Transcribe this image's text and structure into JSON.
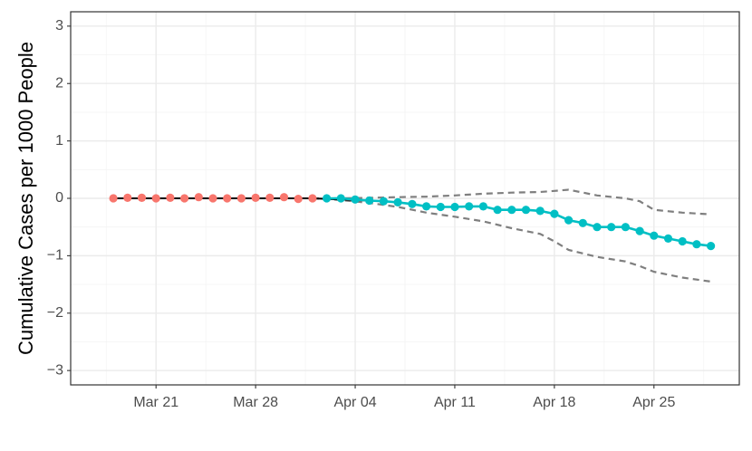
{
  "chart_data": {
    "type": "line",
    "title": "",
    "xlabel": "",
    "ylabel": "Cumulative Cases per 1000 People",
    "grid": true,
    "legend": "none",
    "x_start": "2020-03-18",
    "x_range": [
      "2020-03-15",
      "2020-05-01"
    ],
    "ylim": [
      -3.25,
      3.25
    ],
    "x_ticks": [
      {
        "date": "2020-03-21",
        "label": "Mar 21"
      },
      {
        "date": "2020-03-28",
        "label": "Mar 28"
      },
      {
        "date": "2020-04-04",
        "label": "Apr 04"
      },
      {
        "date": "2020-04-11",
        "label": "Apr 11"
      },
      {
        "date": "2020-04-18",
        "label": "Apr 18"
      },
      {
        "date": "2020-04-25",
        "label": "Apr 25"
      }
    ],
    "y_ticks": [
      {
        "value": 3,
        "label": "3"
      },
      {
        "value": 2,
        "label": "2"
      },
      {
        "value": 1,
        "label": "1"
      },
      {
        "value": 0,
        "label": "0"
      },
      {
        "value": -1,
        "label": "−1"
      },
      {
        "value": -2,
        "label": "−2"
      },
      {
        "value": -3,
        "label": "−3"
      }
    ],
    "series": [
      {
        "role": "pre-period",
        "color": "#F8766D",
        "x": [
          "2020-03-18",
          "2020-03-19",
          "2020-03-20",
          "2020-03-21",
          "2020-03-22",
          "2020-03-23",
          "2020-03-24",
          "2020-03-25",
          "2020-03-26",
          "2020-03-27",
          "2020-03-28",
          "2020-03-29",
          "2020-03-30",
          "2020-03-31",
          "2020-04-01"
        ],
        "values": [
          0,
          0.01,
          0.01,
          0.0,
          0.01,
          0.0,
          0.02,
          0.0,
          0.0,
          0.0,
          0.01,
          0.01,
          0.02,
          -0.01,
          0.0
        ]
      },
      {
        "role": "post-period",
        "color": "#00BFC4",
        "x": [
          "2020-04-02",
          "2020-04-03",
          "2020-04-04",
          "2020-04-05",
          "2020-04-06",
          "2020-04-07",
          "2020-04-08",
          "2020-04-09",
          "2020-04-10",
          "2020-04-11",
          "2020-04-12",
          "2020-04-13",
          "2020-04-14",
          "2020-04-15",
          "2020-04-16",
          "2020-04-17",
          "2020-04-18",
          "2020-04-19",
          "2020-04-20",
          "2020-04-21",
          "2020-04-22",
          "2020-04-23",
          "2020-04-24",
          "2020-04-25",
          "2020-04-26",
          "2020-04-27",
          "2020-04-28",
          "2020-04-29"
        ],
        "values": [
          0.0,
          0.0,
          -0.02,
          -0.04,
          -0.05,
          -0.07,
          -0.1,
          -0.14,
          -0.15,
          -0.15,
          -0.14,
          -0.14,
          -0.2,
          -0.2,
          -0.2,
          -0.22,
          -0.27,
          -0.38,
          -0.43,
          -0.5,
          -0.5,
          -0.5,
          -0.57,
          -0.65,
          -0.7,
          -0.75,
          -0.8,
          -0.83
        ]
      }
    ],
    "fitted_line": {
      "color": "#000000",
      "x": [
        "2020-03-18",
        "2020-04-01",
        "2020-04-05"
      ],
      "values": [
        0,
        0,
        -0.04
      ]
    },
    "confidence_bands": {
      "color": "#7f7f7f",
      "style": "dashed",
      "x": [
        "2020-04-01",
        "2020-04-03",
        "2020-04-05",
        "2020-04-07",
        "2020-04-09",
        "2020-04-11",
        "2020-04-13",
        "2020-04-15",
        "2020-04-17",
        "2020-04-18",
        "2020-04-19",
        "2020-04-21",
        "2020-04-23",
        "2020-04-24",
        "2020-04-25",
        "2020-04-27",
        "2020-04-29"
      ],
      "upper": [
        0.0,
        0.0,
        0.01,
        0.02,
        0.03,
        0.05,
        0.08,
        0.1,
        0.11,
        0.13,
        0.15,
        0.05,
        0.0,
        -0.05,
        -0.2,
        -0.25,
        -0.28
      ],
      "lower": [
        0.0,
        -0.03,
        -0.08,
        -0.15,
        -0.25,
        -0.32,
        -0.4,
        -0.52,
        -0.62,
        -0.75,
        -0.9,
        -1.02,
        -1.1,
        -1.18,
        -1.28,
        -1.38,
        -1.45
      ]
    }
  }
}
